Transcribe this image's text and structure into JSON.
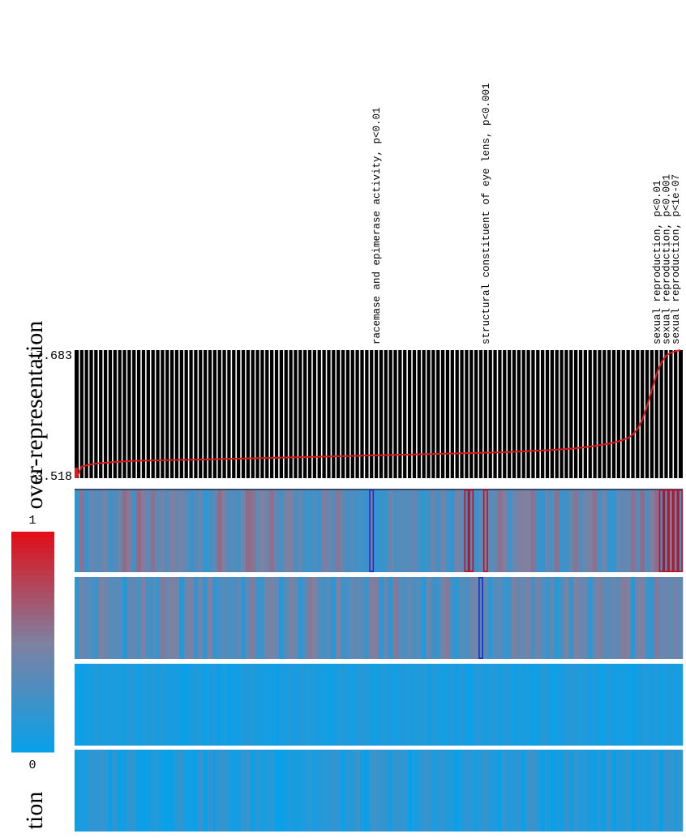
{
  "chart_data": {
    "type": "heatmap",
    "title": "",
    "top_panel": {
      "type": "line",
      "ylabel": "over-representation",
      "y_tick_labels": [
        "-3.518",
        "7.683"
      ],
      "ylim": [
        -3.518,
        7.683
      ],
      "column_count": 128,
      "x": [
        0,
        1,
        2,
        3,
        5,
        8,
        12,
        18,
        25,
        35,
        45,
        55,
        65,
        75,
        85,
        90,
        95,
        100,
        105,
        108,
        112,
        114,
        116,
        117,
        118,
        119,
        120,
        121,
        122,
        123,
        124,
        125,
        126,
        127
      ],
      "values": [
        -3.4,
        -2.5,
        -2.4,
        -2.3,
        -2.2,
        -2.1,
        -2.0,
        -1.95,
        -1.9,
        -1.8,
        -1.7,
        -1.6,
        -1.5,
        -1.4,
        -1.3,
        -1.25,
        -1.15,
        -1.05,
        -0.9,
        -0.75,
        -0.5,
        -0.3,
        0.0,
        0.3,
        0.8,
        1.6,
        2.8,
        4.2,
        5.6,
        6.6,
        7.2,
        7.45,
        7.6,
        7.68
      ]
    },
    "colorbar": {
      "min_label": "0",
      "max_label": "1",
      "low_color": "#0aa0e8",
      "mid_color": "#8080a0",
      "high_color": "#e0101a"
    },
    "heatmap_rows": 4,
    "row_levels": [
      0.38,
      0.32,
      0.06,
      0.1
    ],
    "row_variation": [
      0.22,
      0.22,
      0.06,
      0.12
    ],
    "highlights": [
      {
        "row": 0,
        "columns": [
          62
        ],
        "color": "#1030d0"
      },
      {
        "row": 0,
        "columns": [
          82,
          83,
          86
        ],
        "color": "#c01020"
      },
      {
        "row": 0,
        "columns": [
          123,
          124,
          125,
          126,
          127
        ],
        "color": "#c01020"
      },
      {
        "row": 1,
        "columns": [
          85
        ],
        "color": "#1030d0"
      }
    ],
    "annotations": [
      {
        "text": "racemase and epimerase activity, p<0.01",
        "column": 63
      },
      {
        "text": "structural constituent of eye lens, p<0.001",
        "column": 86
      },
      {
        "text": "sexual reproduction, p<0.01",
        "column": 122
      },
      {
        "text": "sexual reproduction, p<0.001",
        "column": 124
      },
      {
        "text": "sexual reproduction, p<1e-07",
        "column": 126
      }
    ],
    "bottom_label_partial": "tion",
    "line_color": "#e01818"
  }
}
